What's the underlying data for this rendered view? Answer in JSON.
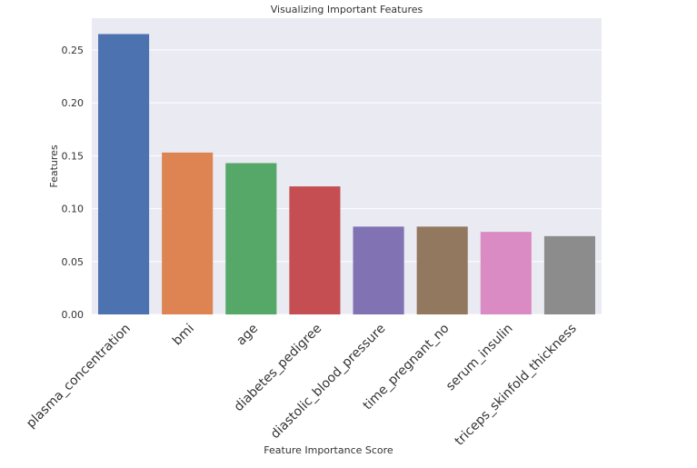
{
  "chart_data": {
    "type": "bar",
    "title": "Visualizing Important Features",
    "xlabel": "Feature Importance Score",
    "ylabel": "Features",
    "categories": [
      "plasma_concentration",
      "bmi",
      "age",
      "diabetes_pedigree",
      "diastolic_blood_pressure",
      "time_pregnant_no",
      "serum_insulin",
      "triceps_skinfold_thickness"
    ],
    "values": [
      0.265,
      0.153,
      0.143,
      0.121,
      0.083,
      0.083,
      0.078,
      0.074
    ],
    "ylim": [
      0,
      0.28
    ],
    "yticks": [
      "0.00",
      "0.05",
      "0.10",
      "0.15",
      "0.20",
      "0.25"
    ],
    "grid": true,
    "colors": [
      "#4c72b0",
      "#dd8452",
      "#55a868",
      "#c44e52",
      "#8172b3",
      "#937860",
      "#da8bc3",
      "#8c8c8c"
    ],
    "background": "#eaeaf2"
  }
}
